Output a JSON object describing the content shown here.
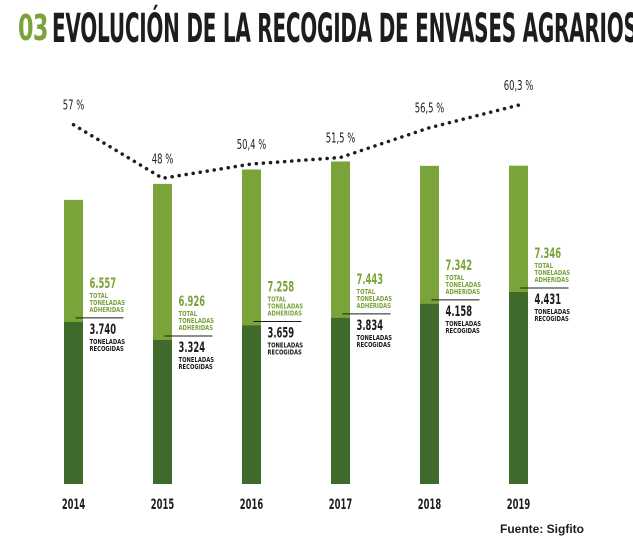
{
  "header": {
    "number": "03",
    "title": "EVOLUCIÓN DE LA RECOGIDA DE ENVASES AGRARIOS"
  },
  "source": "Fuente: Sigfito",
  "colors": {
    "adheridas": "#7aa33a",
    "recogidas": "#3e6b2c",
    "dots": "#1d1d1b",
    "text": "#1d1d1b"
  },
  "chart_data": {
    "type": "bar",
    "title": "EVOLUCIÓN DE LA RECOGIDA DE ENVASES AGRARIOS",
    "categories": [
      "2014",
      "2015",
      "2016",
      "2017",
      "2018",
      "2019"
    ],
    "series": [
      {
        "name": "TOTAL TONELADAS ADHERIDAS",
        "values": [
          6557,
          6926,
          7258,
          7443,
          7342,
          7346
        ],
        "labels": [
          "6.557",
          "6.926",
          "7.258",
          "7.443",
          "7.342",
          "7.346"
        ],
        "label_lines": [
          "TOTAL",
          "TONELADAS",
          "ADHERIDAS"
        ]
      },
      {
        "name": "TONELADAS RECOGIDAS",
        "values": [
          3740,
          3324,
          3659,
          3834,
          4158,
          4431
        ],
        "labels": [
          "3.740",
          "3.324",
          "3.659",
          "3.834",
          "4.158",
          "4.431"
        ],
        "label_lines": [
          "TONELADAS",
          "RECOGIDAS"
        ]
      }
    ],
    "percent_line": {
      "values": [
        57,
        48,
        50.4,
        51.5,
        56.5,
        60.3
      ],
      "labels": [
        "57 %",
        "48 %",
        "50,4 %",
        "51,5 %",
        "56,5 %",
        "60,3 %"
      ]
    },
    "ylim": [
      0,
      7500
    ],
    "legend": "none",
    "grid": false
  }
}
